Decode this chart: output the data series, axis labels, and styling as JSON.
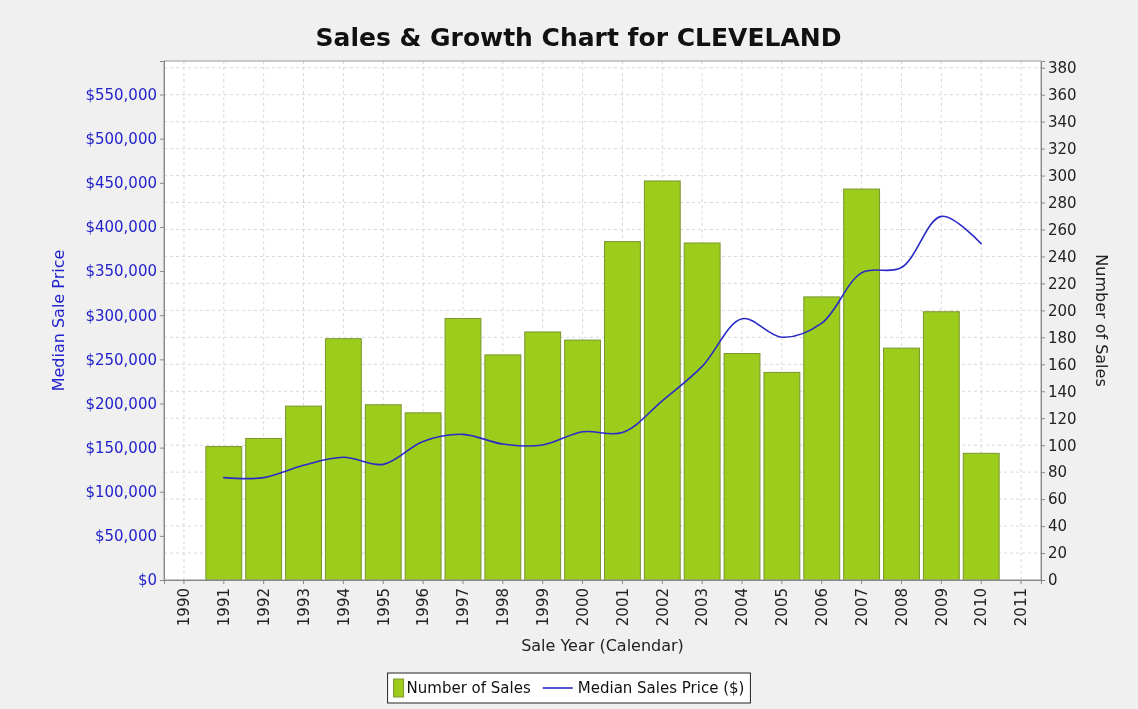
{
  "chart_data": {
    "type": "bar",
    "title": "Sales & Growth Chart for CLEVELAND",
    "xlabel": "Sale Year (Calendar)",
    "ylabel": "Median Sale Price",
    "y2label": "Number of Sales",
    "categories": [
      "1990",
      "1991",
      "1992",
      "1993",
      "1994",
      "1995",
      "1996",
      "1997",
      "1998",
      "1999",
      "2000",
      "2001",
      "2002",
      "2003",
      "2004",
      "2005",
      "2006",
      "2007",
      "2008",
      "2009",
      "2010",
      "2011"
    ],
    "series": [
      {
        "name": "Number of Sales",
        "axis": "y2",
        "color": "#9ccc1c",
        "values": [
          null,
          99,
          105,
          129,
          179,
          130,
          124,
          194,
          167,
          184,
          178,
          251,
          296,
          250,
          168,
          154,
          210,
          290,
          172,
          199,
          94,
          null
        ]
      },
      {
        "name": "Median Sales Price ($)",
        "type": "line",
        "axis": "y",
        "color": "#2a2ac8",
        "values": [
          null,
          116000,
          116000,
          130000,
          139000,
          131000,
          157000,
          165000,
          154000,
          153000,
          168000,
          167000,
          203000,
          242000,
          296000,
          275000,
          291000,
          348000,
          354000,
          412000,
          381000,
          null
        ]
      }
    ],
    "ylim": [
      0,
      588000
    ],
    "yticks": [
      {
        "value": 0,
        "label": "$0"
      },
      {
        "value": 50000,
        "label": "$50,000"
      },
      {
        "value": 100000,
        "label": "$100,000"
      },
      {
        "value": 150000,
        "label": "$150,000"
      },
      {
        "value": 200000,
        "label": "$200,000"
      },
      {
        "value": 250000,
        "label": "$250,000"
      },
      {
        "value": 300000,
        "label": "$300,000"
      },
      {
        "value": 350000,
        "label": "$350,000"
      },
      {
        "value": 400000,
        "label": "$400,000"
      },
      {
        "value": 450000,
        "label": "$450,000"
      },
      {
        "value": 500000,
        "label": "$500,000"
      },
      {
        "value": 550000,
        "label": "$550,000"
      }
    ],
    "y2lim": [
      0,
      385
    ],
    "y2ticks": [
      0,
      20,
      40,
      60,
      80,
      100,
      120,
      140,
      160,
      180,
      200,
      220,
      240,
      260,
      280,
      300,
      320,
      340,
      360,
      380
    ],
    "grid": true,
    "legend": "bottom"
  }
}
